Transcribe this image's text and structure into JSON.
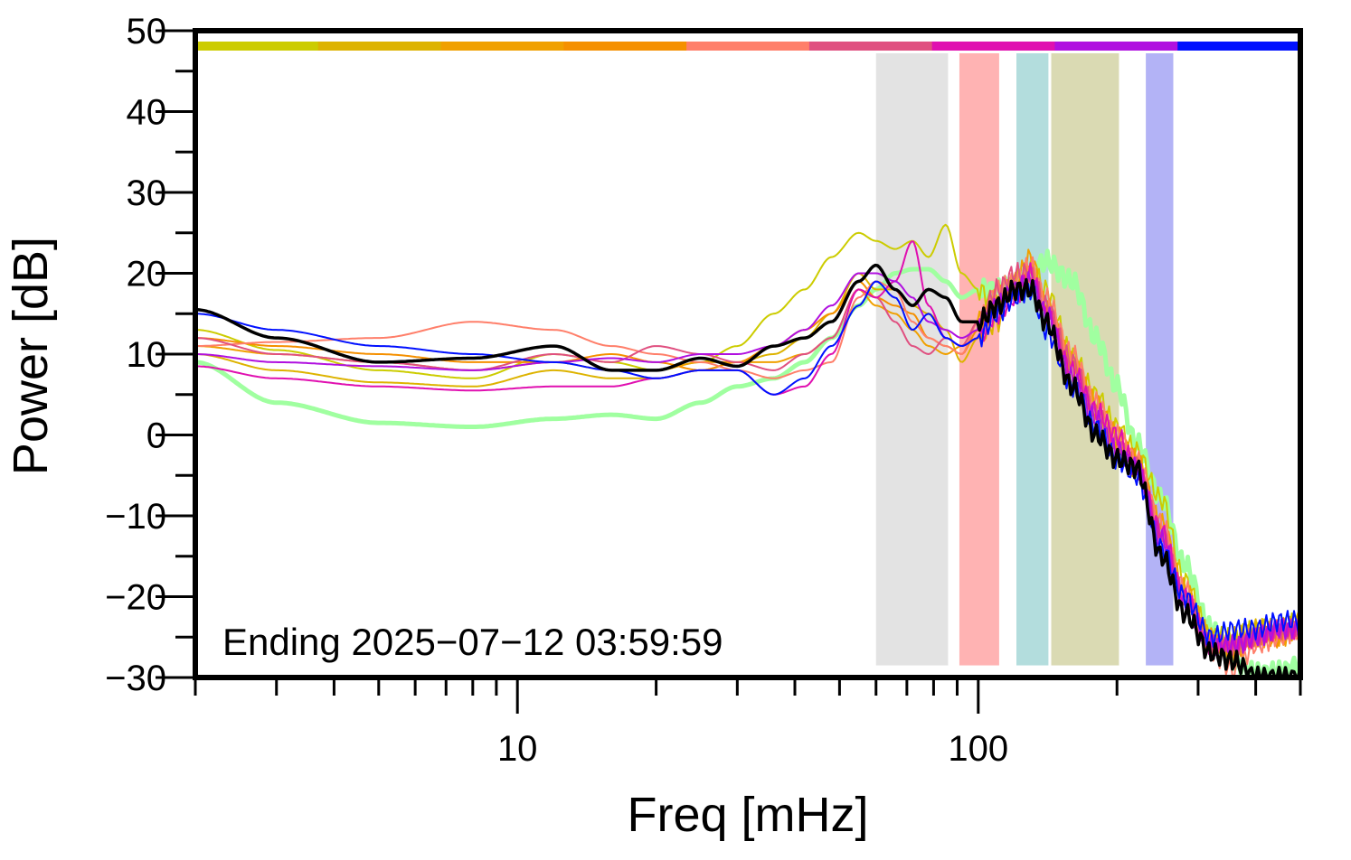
{
  "chart_data": {
    "type": "line",
    "xlabel": "Freq [mHz]",
    "ylabel": "Power [dB]",
    "annotation": "Ending 2025−07−12 03:59:59",
    "x_scale": "log",
    "xlim": [
      2,
      500
    ],
    "ylim": [
      -30,
      50
    ],
    "x_ticks": [
      10,
      100
    ],
    "x_tick_labels": [
      "10",
      "100"
    ],
    "y_ticks": [
      -30,
      -20,
      -10,
      0,
      10,
      20,
      30,
      40,
      50
    ],
    "y_tick_labels": [
      "−30",
      "−20",
      "−10",
      "0",
      "10",
      "20",
      "30",
      "40",
      "50"
    ],
    "grid": false,
    "legend": "none",
    "time_bar": {
      "y": 48.1,
      "colors": [
        "#cccc00",
        "#ddb300",
        "#f0a000",
        "#f59000",
        "#ff7f6a",
        "#e05080",
        "#e010b0",
        "#b010e0",
        "#0010ff"
      ]
    },
    "bands": [
      {
        "x0": 60,
        "x1": 86,
        "color": "#e3e3e3"
      },
      {
        "x0": 91,
        "x1": 111,
        "color": "#ffb3b3"
      },
      {
        "x0": 121,
        "x1": 142,
        "color": "#b3dddd"
      },
      {
        "x0": 144,
        "x1": 202,
        "color": "#dadab3"
      },
      {
        "x0": 231,
        "x1": 265,
        "color": "#b3b3f6"
      }
    ],
    "x": [
      2,
      3,
      5,
      8,
      12,
      16,
      20,
      25,
      30,
      36,
      42,
      48,
      55,
      60,
      66,
      72,
      78,
      85,
      92,
      100,
      110,
      120,
      130,
      140,
      160,
      180,
      200,
      220,
      250,
      280,
      320,
      360,
      400,
      450,
      500
    ],
    "series": [
      {
        "color": "#a0ffa0",
        "width": 5,
        "values": [
          9,
          4,
          1.5,
          1,
          2,
          2.5,
          2,
          4,
          6,
          7,
          9,
          12,
          16,
          18,
          20,
          20.5,
          20.5,
          19,
          17,
          18,
          18,
          18.5,
          20,
          21.5,
          19,
          12,
          6,
          -1,
          -8,
          -16,
          -24,
          -28,
          -29.5,
          -29.3,
          -28.5
        ]
      },
      {
        "color": "#cccc00",
        "width": 2,
        "values": [
          13,
          10.5,
          8,
          7,
          10,
          9,
          8,
          9,
          11,
          15,
          18,
          22,
          25,
          24,
          23,
          24,
          22,
          26,
          20,
          18,
          16,
          19,
          21,
          18,
          10,
          5,
          1,
          -2,
          -8,
          -18,
          -25,
          -25,
          -24,
          -24,
          -23
        ]
      },
      {
        "color": "#ddb300",
        "width": 2,
        "values": [
          10,
          8,
          6.5,
          6,
          8,
          7,
          7,
          8,
          9,
          10,
          12,
          15,
          20,
          18,
          18,
          16,
          15,
          13,
          9,
          12,
          14,
          18,
          20,
          15,
          9,
          3,
          -2,
          -4,
          -12,
          -20,
          -26,
          -25,
          -24,
          -24,
          -23
        ]
      },
      {
        "color": "#f0a000",
        "width": 2,
        "values": [
          11,
          10,
          9,
          8,
          9,
          8,
          8,
          9,
          9,
          9,
          10,
          12,
          18,
          16,
          15,
          13,
          11,
          10,
          11,
          14,
          17,
          19,
          22,
          16,
          9,
          4,
          0,
          -3,
          -11,
          -19,
          -25,
          -27,
          -25,
          -25,
          -24
        ]
      },
      {
        "color": "#f59000",
        "width": 2,
        "values": [
          12,
          11,
          10,
          9,
          9,
          10,
          9,
          8,
          9,
          11,
          13,
          15,
          19,
          17,
          16,
          15,
          12,
          11,
          10,
          13,
          16,
          18,
          20,
          16,
          8,
          3,
          -1,
          -3,
          -12,
          -20,
          -26,
          -27,
          -25,
          -25,
          -24
        ]
      },
      {
        "color": "#ff7f6a",
        "width": 2,
        "values": [
          11,
          11.5,
          12,
          14,
          13,
          11,
          10,
          9,
          8,
          7,
          8,
          9,
          17,
          19,
          18,
          14,
          12,
          11,
          10,
          14,
          18,
          19,
          21,
          17,
          10,
          4,
          0,
          -3,
          -11,
          -19,
          -27,
          -29,
          -26,
          -25,
          -24
        ]
      },
      {
        "color": "#e05080",
        "width": 2,
        "values": [
          12,
          10,
          9,
          8,
          10,
          9,
          11,
          10,
          9,
          8,
          10,
          12,
          18,
          17,
          14,
          11,
          10,
          12,
          11,
          14,
          18,
          20,
          20,
          16,
          9,
          3,
          -1,
          -4,
          -12,
          -20,
          -26,
          -26,
          -25,
          -24,
          -24
        ]
      },
      {
        "color": "#e010b0",
        "width": 2,
        "values": [
          8.5,
          7,
          6,
          5.5,
          6,
          6,
          7,
          8,
          8,
          5,
          6,
          10,
          18,
          17,
          19,
          24,
          16,
          12,
          11,
          12,
          15,
          17,
          20,
          15,
          8,
          3,
          0,
          -4,
          -12,
          -20,
          -26,
          -26,
          -25,
          -24,
          -24
        ]
      },
      {
        "color": "#b010e0",
        "width": 2,
        "values": [
          10,
          9,
          8.5,
          8,
          9,
          9.5,
          9,
          10,
          10,
          11,
          13,
          16,
          20,
          20,
          19,
          17,
          14,
          13,
          12,
          13,
          16,
          18,
          19,
          15,
          7,
          2,
          -2,
          -4,
          -13,
          -21,
          -26,
          -26,
          -25,
          -24,
          -24
        ]
      },
      {
        "color": "#0010ff",
        "width": 2,
        "values": [
          15,
          13,
          11,
          10,
          9,
          8,
          7,
          8,
          8,
          5,
          7,
          11,
          16,
          19,
          17,
          13,
          15,
          12,
          11,
          12,
          15,
          17,
          18,
          13,
          6,
          1,
          -3,
          -5,
          -14,
          -20,
          -25,
          -24,
          -24,
          -23,
          -23
        ]
      },
      {
        "color": "#000000",
        "width": 3.5,
        "values": [
          15.5,
          12,
          9,
          9.5,
          11,
          8,
          8,
          9.5,
          8.5,
          11,
          12,
          14,
          19,
          21,
          18,
          16,
          18,
          17,
          14,
          14,
          16,
          18,
          18,
          14,
          6,
          0,
          -3,
          -4,
          -15,
          -22,
          -27,
          -28,
          -30,
          -30,
          -30
        ]
      }
    ]
  }
}
